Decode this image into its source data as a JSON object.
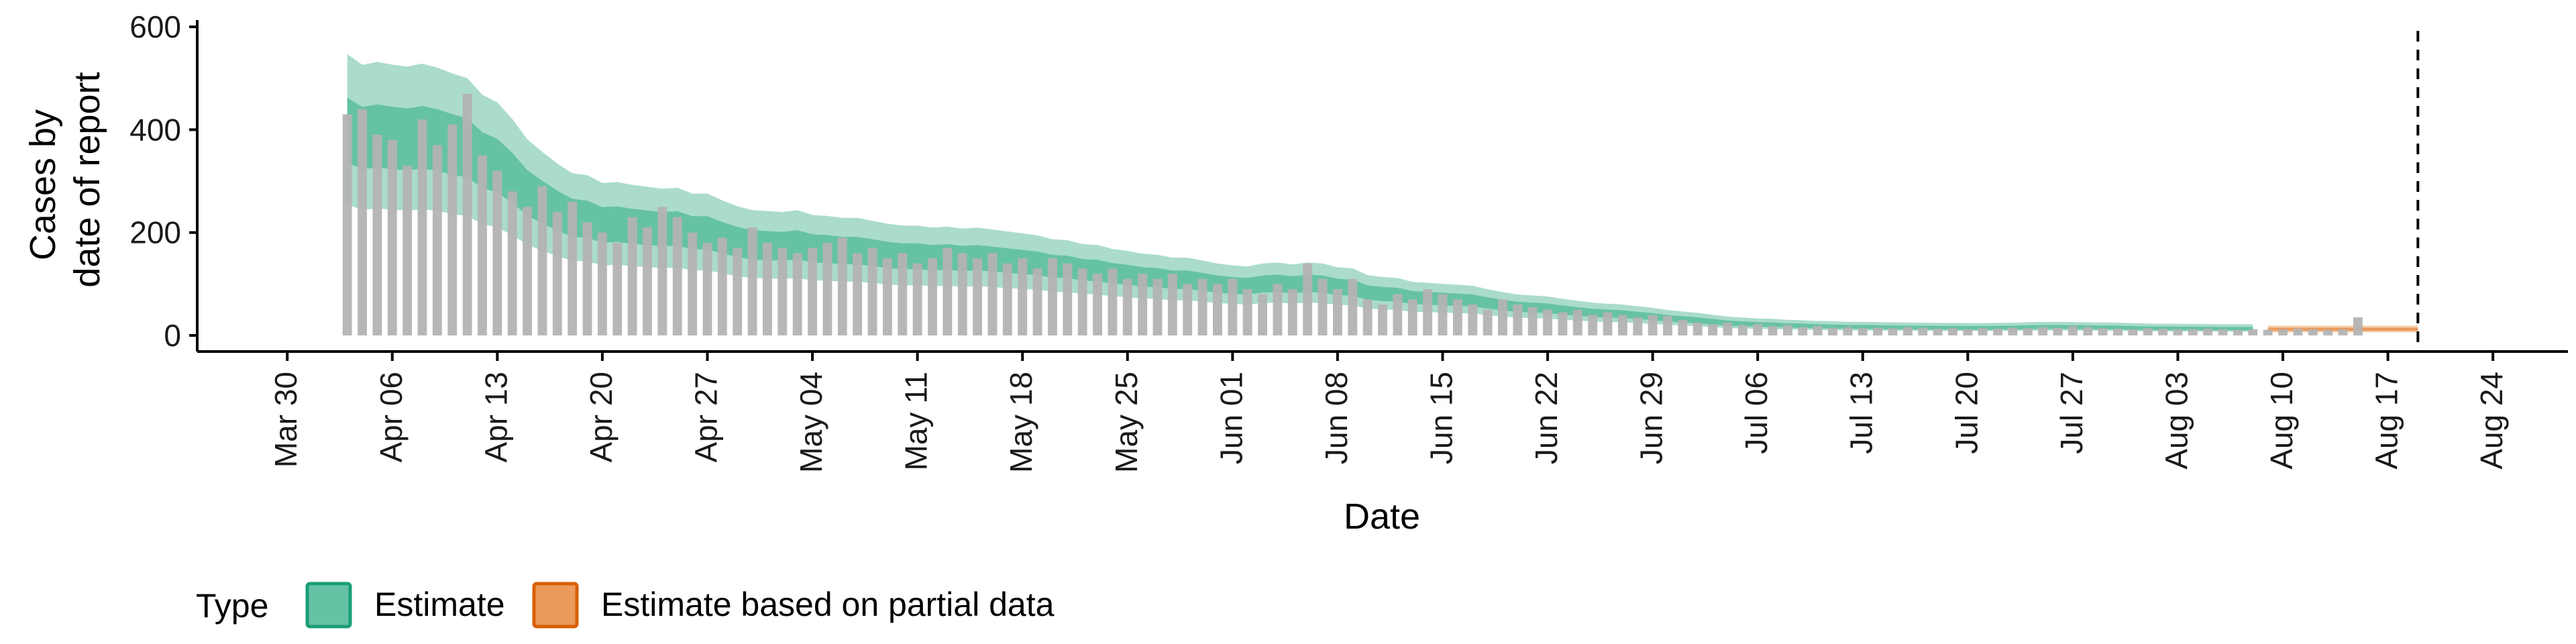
{
  "chart_data": {
    "type": "area",
    "title": "",
    "xlabel": "Date",
    "ylabel_lines": [
      "Cases by",
      "date of report"
    ],
    "ylim": [
      0,
      600
    ],
    "y_ticks": [
      0,
      200,
      400,
      600
    ],
    "x_start": "2020-04-03",
    "estimate_end": "2020-08-08",
    "forecast_end": "2020-08-19",
    "vline_date": "2020-08-19",
    "x_ticks": [
      {
        "date": "2020-03-30",
        "label": "Mar 30"
      },
      {
        "date": "2020-04-06",
        "label": "Apr 06"
      },
      {
        "date": "2020-04-13",
        "label": "Apr 13"
      },
      {
        "date": "2020-04-20",
        "label": "Apr 20"
      },
      {
        "date": "2020-04-27",
        "label": "Apr 27"
      },
      {
        "date": "2020-05-04",
        "label": "May 04"
      },
      {
        "date": "2020-05-11",
        "label": "May 11"
      },
      {
        "date": "2020-05-18",
        "label": "May 18"
      },
      {
        "date": "2020-05-25",
        "label": "May 25"
      },
      {
        "date": "2020-06-01",
        "label": "Jun 01"
      },
      {
        "date": "2020-06-08",
        "label": "Jun 08"
      },
      {
        "date": "2020-06-15",
        "label": "Jun 15"
      },
      {
        "date": "2020-06-22",
        "label": "Jun 22"
      },
      {
        "date": "2020-06-29",
        "label": "Jun 29"
      },
      {
        "date": "2020-07-06",
        "label": "Jul 06"
      },
      {
        "date": "2020-07-13",
        "label": "Jul 13"
      },
      {
        "date": "2020-07-20",
        "label": "Jul 20"
      },
      {
        "date": "2020-07-27",
        "label": "Jul 27"
      },
      {
        "date": "2020-08-03",
        "label": "Aug 03"
      },
      {
        "date": "2020-08-10",
        "label": "Aug 10"
      },
      {
        "date": "2020-08-17",
        "label": "Aug 17"
      },
      {
        "date": "2020-08-24",
        "label": "Aug 24"
      }
    ],
    "reported_cases": [
      430,
      440,
      390,
      380,
      330,
      420,
      370,
      410,
      470,
      350,
      320,
      280,
      250,
      290,
      240,
      260,
      220,
      200,
      180,
      230,
      210,
      250,
      230,
      200,
      180,
      190,
      170,
      210,
      180,
      170,
      160,
      170,
      180,
      190,
      160,
      170,
      150,
      160,
      140,
      150,
      170,
      160,
      150,
      160,
      140,
      150,
      130,
      150,
      140,
      130,
      120,
      130,
      110,
      120,
      110,
      120,
      100,
      110,
      100,
      110,
      90,
      80,
      100,
      90,
      140,
      110,
      90,
      110,
      70,
      60,
      80,
      70,
      90,
      80,
      70,
      60,
      50,
      70,
      60,
      55,
      50,
      45,
      50,
      40,
      45,
      40,
      35,
      40,
      38,
      30,
      25,
      22,
      25,
      20,
      22,
      18,
      20,
      16,
      18,
      15,
      16,
      14,
      15,
      14,
      16,
      15,
      13,
      14,
      12,
      14,
      13,
      15,
      14,
      16,
      15,
      18,
      16,
      14,
      13,
      12,
      14,
      13,
      12,
      12,
      13,
      12,
      11,
      12,
      11,
      12,
      13,
      12,
      11,
      12,
      35
    ],
    "legend": {
      "title": "Type",
      "entries": [
        {
          "label": "Estimate",
          "fill": "#66c2a5",
          "stroke": "#1b9e77"
        },
        {
          "label": "Estimate based on partial data",
          "fill": "#eb9a5c",
          "stroke": "#d95f02"
        }
      ]
    },
    "colors": {
      "bar": "#b3b3b3",
      "estimate_inner": "#66c2a5",
      "estimate_outer": "#aadcc9",
      "partial_inner": "#eb9a5c",
      "partial_outer": "#f6cda9"
    },
    "grid": false,
    "legend_position": "bottom"
  }
}
